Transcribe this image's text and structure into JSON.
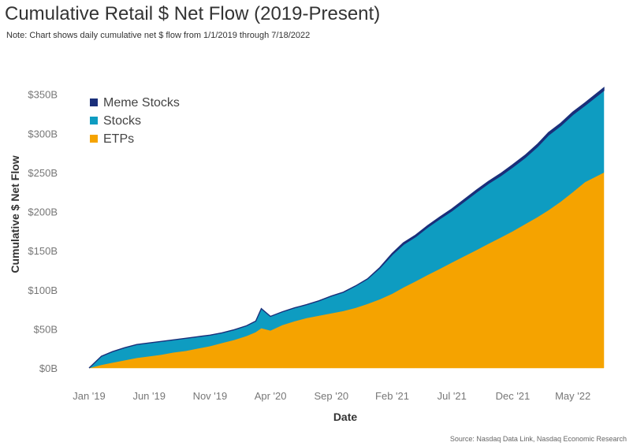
{
  "chart_data": {
    "type": "area",
    "stacked": true,
    "title": "Cumulative Retail $ Net Flow (2019-Present)",
    "subtitle": "Note: Chart shows daily cumulative net $ flow from 1/1/2019 through 7/18/2022",
    "source": "Source: Nasdaq Data Link, Nasdaq Economic Research",
    "xlabel": "Date",
    "ylabel": "Cumulative $ Net Flow",
    "xlim": [
      "2019-01-01",
      "2022-07-18"
    ],
    "ylim": [
      0,
      385
    ],
    "y_unit": "$B",
    "grid": false,
    "legend_position": "top-left",
    "x_ticks": [
      {
        "date": "2019-01-01",
        "label": "Jan '19"
      },
      {
        "date": "2019-06-01",
        "label": "Jun '19"
      },
      {
        "date": "2019-11-01",
        "label": "Nov '19"
      },
      {
        "date": "2020-04-01",
        "label": "Apr '20"
      },
      {
        "date": "2020-09-01",
        "label": "Sep '20"
      },
      {
        "date": "2021-02-01",
        "label": "Feb '21"
      },
      {
        "date": "2021-07-01",
        "label": "Jul '21"
      },
      {
        "date": "2021-12-01",
        "label": "Dec '21"
      },
      {
        "date": "2022-05-01",
        "label": "May '22"
      }
    ],
    "y_ticks": [
      {
        "value": 0,
        "label": "$0B"
      },
      {
        "value": 50,
        "label": "$50B"
      },
      {
        "value": 100,
        "label": "$100B"
      },
      {
        "value": 150,
        "label": "$150B"
      },
      {
        "value": 200,
        "label": "$200B"
      },
      {
        "value": 250,
        "label": "$250B"
      },
      {
        "value": 300,
        "label": "$300B"
      },
      {
        "value": 350,
        "label": "$350B"
      }
    ],
    "dates": [
      "2019-01-01",
      "2019-02-01",
      "2019-03-01",
      "2019-04-01",
      "2019-05-01",
      "2019-06-01",
      "2019-07-01",
      "2019-08-01",
      "2019-09-01",
      "2019-10-01",
      "2019-11-01",
      "2019-12-01",
      "2020-01-01",
      "2020-02-01",
      "2020-02-24",
      "2020-03-09",
      "2020-04-01",
      "2020-05-01",
      "2020-06-01",
      "2020-07-01",
      "2020-08-01",
      "2020-09-01",
      "2020-10-01",
      "2020-11-01",
      "2020-12-01",
      "2021-01-01",
      "2021-02-01",
      "2021-03-01",
      "2021-04-01",
      "2021-05-01",
      "2021-06-01",
      "2021-07-01",
      "2021-08-01",
      "2021-09-01",
      "2021-10-01",
      "2021-11-01",
      "2021-12-01",
      "2022-01-01",
      "2022-02-01",
      "2022-03-01",
      "2022-04-01",
      "2022-05-01",
      "2022-06-01",
      "2022-07-18"
    ],
    "series": [
      {
        "name": "ETPs",
        "color": "#F5A300",
        "values": [
          0,
          4,
          7,
          10,
          13,
          15,
          17,
          20,
          22,
          25,
          28,
          32,
          36,
          41,
          46,
          51,
          48,
          55,
          60,
          64,
          67,
          70,
          73,
          77,
          82,
          88,
          95,
          103,
          111,
          119,
          127,
          135,
          143,
          151,
          159,
          167,
          175,
          184,
          193,
          202,
          213,
          225,
          238,
          250
        ]
      },
      {
        "name": "Stocks",
        "color": "#0E9CC1",
        "values": [
          0,
          11,
          14,
          16,
          17,
          17,
          17,
          16,
          16,
          15,
          14,
          13,
          13,
          13,
          14,
          25,
          18,
          17,
          17,
          17,
          19,
          22,
          24,
          28,
          32,
          40,
          50,
          55,
          57,
          61,
          64,
          66,
          70,
          74,
          77,
          79,
          82,
          85,
          90,
          96,
          97,
          99,
          98,
          105
        ]
      },
      {
        "name": "Meme Stocks",
        "color": "#1A2F7A",
        "values": [
          0,
          0,
          0,
          0,
          0,
          0,
          0,
          0,
          0,
          0,
          0,
          0,
          0,
          0,
          0,
          0,
          0,
          0,
          0,
          0,
          0,
          0,
          0,
          0,
          0,
          0.5,
          1.5,
          2,
          2,
          2,
          2.2,
          2.4,
          2.5,
          2.6,
          2.7,
          2.8,
          2.9,
          3,
          3,
          3.1,
          3.1,
          3.2,
          3.2,
          3.3
        ]
      }
    ],
    "legend_order": [
      "Meme Stocks",
      "Stocks",
      "ETPs"
    ]
  }
}
